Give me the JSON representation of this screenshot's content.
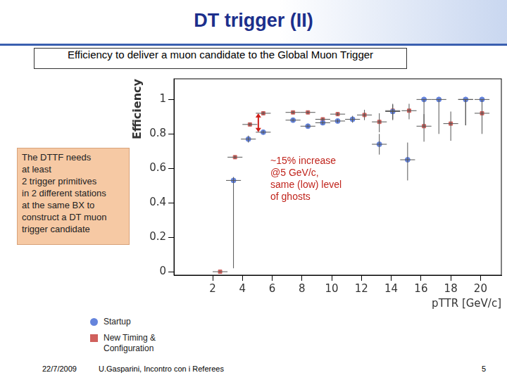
{
  "slide": {
    "title": "DT trigger (II)",
    "subtitle": "Efficiency to deliver a muon candidate to the Global Muon Trigger",
    "note": "The DTTF needs\nat least\n2 trigger primitives\nin 2 different stations\nat the same BX to\nconstruct a DT muon\ntrigger candidate",
    "footer": {
      "date": "22/7/2009",
      "author": "U.Gasparini,  Incontro con i Referees",
      "page": "5"
    }
  },
  "chart_data": {
    "type": "scatter",
    "x_label": "pTTR [GeV/c]",
    "y_label": "Efficiency",
    "xlim": [
      -0.6,
      21.4
    ],
    "xticks": [
      2,
      4,
      6,
      8,
      10,
      12,
      14,
      16,
      18,
      20
    ],
    "ylim": [
      -0.02,
      1.12
    ],
    "yticks": [
      0,
      0.2,
      0.4,
      0.6,
      0.8,
      1
    ],
    "grid": false,
    "legend": "lower left",
    "annotation": {
      "text": "~15% increase\n@5 GeV/c,\nsame (low) level\nof ghosts",
      "arrow_x": 5.4
    },
    "series": [
      {
        "name": "Startup",
        "color": "#6584dc",
        "marker": "circle",
        "x": [
          3.4,
          4.4,
          5.4,
          7.4,
          8.4,
          9.4,
          10.4,
          11.4,
          13.2,
          14.1,
          15.1,
          16.2,
          17.2,
          19.0,
          20.1
        ],
        "values": [
          0.53,
          0.77,
          0.81,
          0.88,
          0.845,
          0.865,
          0.875,
          0.885,
          0.74,
          0.93,
          0.65,
          1.0,
          1.0,
          1.0,
          1.0
        ],
        "x_err": [
          0.5,
          0.5,
          0.5,
          0.5,
          0.5,
          0.5,
          0.5,
          0.5,
          0.5,
          0.5,
          0.5,
          0.5,
          0.5,
          0.5,
          0.5
        ],
        "y_err": [
          [
            0.51,
            0.02
          ],
          [
            0.02,
            0.02
          ],
          [
            0.01,
            0.01
          ],
          [
            0.01,
            0.01
          ],
          [
            0.01,
            0.01
          ],
          [
            0.01,
            0.01
          ],
          [
            0.01,
            0.01
          ],
          [
            0.02,
            0.02
          ],
          [
            0.06,
            0.06
          ],
          [
            0.05,
            0.04
          ],
          [
            0.12,
            0.1
          ],
          [
            0.15,
            0
          ],
          [
            0.2,
            0
          ],
          [
            0.15,
            0
          ],
          [
            0.2,
            0
          ]
        ]
      },
      {
        "name": "New Timing & Configuration",
        "color": "#d0605c",
        "marker": "square",
        "x": [
          2.5,
          3.5,
          4.5,
          5.4,
          7.4,
          8.4,
          9.4,
          10.4,
          12.2,
          13.2,
          14.1,
          15.2,
          16.2,
          18.0,
          19.0,
          20.1
        ],
        "values": [
          0,
          0.665,
          0.855,
          0.92,
          0.925,
          0.925,
          0.885,
          0.915,
          0.91,
          0.87,
          0.935,
          0.935,
          0.845,
          0.86,
          1.0,
          0.92
        ],
        "x_err": [
          0.5,
          0.5,
          0.5,
          0.5,
          0.5,
          0.5,
          0.5,
          0.5,
          0.5,
          0.5,
          0.5,
          0.5,
          0.5,
          0.5,
          0.5,
          0.5
        ],
        "y_err": [
          [
            0,
            0
          ],
          [
            0.01,
            0.01
          ],
          [
            0.01,
            0.01
          ],
          [
            0.01,
            0.01
          ],
          [
            0.01,
            0.01
          ],
          [
            0.01,
            0.01
          ],
          [
            0.01,
            0.01
          ],
          [
            0.01,
            0.01
          ],
          [
            0.03,
            0.03
          ],
          [
            0.06,
            0.05
          ],
          [
            0.05,
            0.04
          ],
          [
            0.05,
            0.04
          ],
          [
            0.09,
            0.07
          ],
          [
            0.1,
            0.07
          ],
          [
            0.15,
            0
          ],
          [
            0.1,
            0.06
          ]
        ]
      }
    ]
  }
}
